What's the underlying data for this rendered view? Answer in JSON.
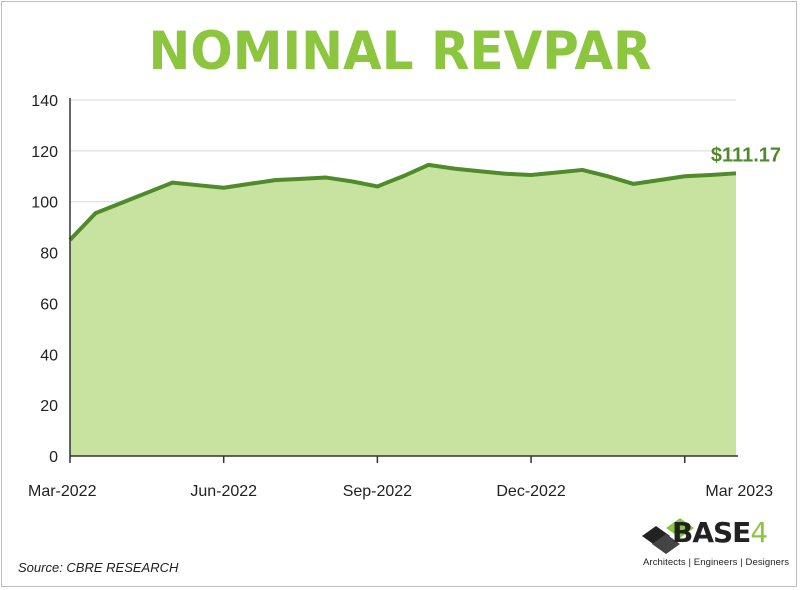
{
  "title": "NOMINAL REVPAR",
  "source": "Source: CBRE RESEARCH",
  "logo": {
    "name": "BASE",
    "number": "4",
    "tagline": "Architects | Engineers | Designers"
  },
  "colors": {
    "title": "#8cc63f",
    "line": "#4f8a2b",
    "fill": "#c8e3a0",
    "grid": "#d9d9d9"
  },
  "chart_data": {
    "type": "area",
    "title": "NOMINAL REVPAR",
    "xlabel": "",
    "ylabel": "",
    "ylim": [
      0,
      140
    ],
    "yticks": [
      0,
      20,
      40,
      60,
      80,
      100,
      120,
      140
    ],
    "grid": true,
    "x_tick_labels": [
      "Mar-2022",
      "Jun-2022",
      "Sep-2022",
      "Dec-2022",
      "Mar 2023"
    ],
    "x_tick_index": [
      0,
      6,
      12,
      18,
      24
    ],
    "values": [
      85,
      95.5,
      99.5,
      103.5,
      107.5,
      106.5,
      105.5,
      107,
      108.5,
      109,
      109.5,
      108,
      106,
      110,
      114.5,
      113,
      112,
      111,
      110.5,
      111.5,
      112.5,
      110,
      107,
      108.5,
      110,
      110.5,
      111.17
    ],
    "end_label": "$111.17"
  }
}
